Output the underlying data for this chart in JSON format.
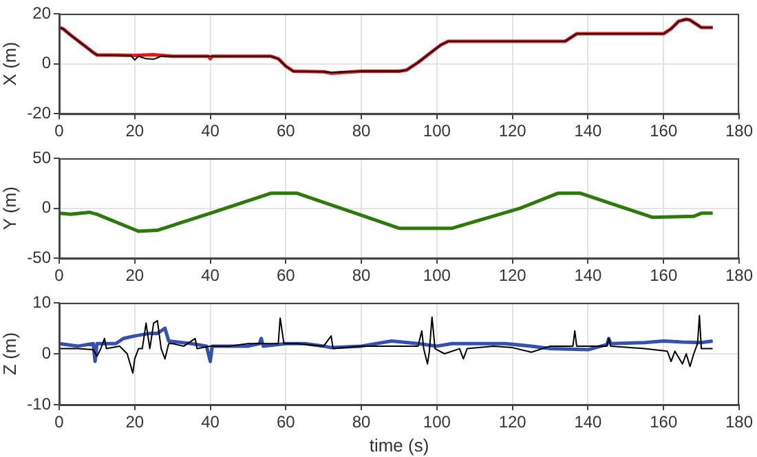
{
  "chart_data": [
    {
      "type": "line",
      "ylabel": "X (m)",
      "xlim": [
        0,
        180
      ],
      "xticks": [
        0,
        20,
        40,
        60,
        80,
        100,
        120,
        140,
        160,
        180
      ],
      "ylim": [
        -20,
        20
      ],
      "yticks": [
        -20,
        0,
        20
      ],
      "grid": true,
      "legend": false,
      "series": [
        {
          "color": "#000000",
          "x": [
            0,
            1,
            3,
            6,
            9,
            10,
            15,
            19,
            20,
            21,
            23,
            25,
            27,
            30,
            40,
            50,
            56,
            58,
            60,
            62,
            70,
            72,
            80,
            90,
            92,
            95,
            98,
            101,
            103,
            110,
            120,
            130,
            134,
            136,
            137,
            145,
            155,
            160,
            162,
            164,
            166,
            167,
            169,
            170,
            173
          ],
          "values": [
            14.5,
            14,
            11.5,
            8,
            4.5,
            3.5,
            3.3,
            3.2,
            1.5,
            3,
            2,
            1.8,
            3,
            3,
            3,
            3,
            3,
            2,
            -1,
            -3,
            -3.2,
            -3.5,
            -3,
            -3,
            -2.5,
            0.5,
            4,
            7.5,
            9,
            9,
            9,
            9,
            9,
            11,
            12,
            12,
            12,
            12,
            14,
            17,
            17.8,
            17.5,
            15.5,
            14.5,
            14.5
          ]
        },
        {
          "color": "#e8161a",
          "x": [
            0,
            1,
            3,
            6,
            9,
            10,
            15,
            20,
            25,
            30,
            39.5,
            40,
            40.5,
            50,
            56,
            58,
            60,
            62,
            70,
            72,
            80,
            90,
            92,
            95,
            98,
            101,
            103,
            110,
            120,
            130,
            134,
            136,
            137,
            145,
            155,
            160,
            162,
            164,
            166,
            167,
            169,
            170,
            173
          ],
          "values": [
            14.5,
            14,
            11.5,
            8,
            4.5,
            3.5,
            3.5,
            3.3,
            3.6,
            3,
            3,
            2,
            3,
            3,
            3,
            2,
            -1,
            -3,
            -3.2,
            -3.8,
            -3,
            -3,
            -2.5,
            0.5,
            4,
            7.5,
            9,
            9,
            9,
            9,
            9,
            11,
            12,
            12,
            12,
            12,
            14,
            17,
            17.8,
            17.5,
            15.5,
            14.5,
            14.5
          ]
        }
      ]
    },
    {
      "type": "line",
      "ylabel": "Y (m)",
      "xlim": [
        0,
        180
      ],
      "xticks": [
        0,
        20,
        40,
        60,
        80,
        100,
        120,
        140,
        160,
        180
      ],
      "ylim": [
        -50,
        50
      ],
      "yticks": [
        -50,
        0,
        50
      ],
      "grid": true,
      "legend": false,
      "series": [
        {
          "color": "#2d7a0c",
          "x": [
            0,
            3,
            8,
            10,
            21,
            26,
            40,
            56,
            63,
            90,
            104,
            122,
            132,
            138,
            157,
            168,
            170,
            173
          ],
          "values": [
            -5,
            -6,
            -4,
            -6,
            -23,
            -22,
            -5,
            15,
            15,
            -20,
            -20,
            0,
            15,
            15,
            -9,
            -8,
            -5,
            -5
          ]
        }
      ]
    },
    {
      "type": "line",
      "ylabel": "Z (m)",
      "xlabel": "time (s)",
      "xlim": [
        0,
        180
      ],
      "xticks": [
        0,
        20,
        40,
        60,
        80,
        100,
        120,
        140,
        160,
        180
      ],
      "ylim": [
        -10,
        10
      ],
      "yticks": [
        -10,
        0,
        10
      ],
      "grid": true,
      "legend": false,
      "series": [
        {
          "color": "#000000",
          "x": [
            0,
            5,
            9,
            10,
            11,
            12,
            12.5,
            16,
            18,
            19.5,
            20,
            21,
            22,
            23,
            24,
            25,
            26,
            27,
            28,
            29,
            30,
            33,
            36,
            36.5,
            40,
            45,
            50,
            55,
            58,
            58.5,
            59.5,
            63,
            70,
            72,
            72.5,
            80,
            90,
            95,
            96,
            96.5,
            97.5,
            98,
            98.7,
            99.5,
            102,
            106,
            107,
            108,
            115,
            120,
            125,
            130,
            136,
            136.5,
            137,
            145,
            145.5,
            146,
            155,
            161,
            162,
            163,
            165,
            166,
            167,
            168,
            169,
            169.5,
            170,
            173
          ],
          "values": [
            1,
            1,
            0.8,
            -0.5,
            1,
            3,
            1,
            1.5,
            0,
            -3.8,
            -1,
            1,
            1,
            6,
            1,
            6,
            6.5,
            1,
            -1,
            2,
            2,
            1.5,
            3,
            1,
            1.5,
            1.5,
            2,
            2,
            2,
            7,
            2,
            2,
            1.5,
            3.5,
            1,
            1.5,
            1.5,
            1.5,
            4.5,
            1,
            -2,
            0.5,
            7.2,
            1,
            0,
            1,
            -1,
            1,
            1.5,
            1.2,
            0.3,
            1.5,
            1.5,
            4.5,
            1.5,
            1.5,
            3,
            1.5,
            1,
            0.5,
            -1.5,
            0.5,
            -2,
            0,
            -2.5,
            0,
            2,
            7.5,
            1,
            1
          ]
        },
        {
          "color": "#3451b2",
          "x": [
            0,
            5,
            9,
            9.5,
            10,
            15,
            17,
            20,
            24,
            26,
            28,
            29,
            35,
            39,
            40,
            40.5,
            50,
            53,
            53.5,
            54,
            60,
            65,
            70,
            72,
            80,
            88,
            95,
            100,
            104,
            110,
            118,
            125,
            130,
            140,
            145,
            145.5,
            146,
            155,
            160,
            165,
            170,
            173
          ],
          "values": [
            2,
            1.5,
            2,
            -1.5,
            2,
            2,
            3,
            3.5,
            4,
            4,
            5,
            2.5,
            2,
            1.5,
            -1.5,
            1.5,
            1.5,
            2,
            3,
            1.5,
            2,
            2,
            1.5,
            1.2,
            1.5,
            2.5,
            2,
            1.5,
            2,
            2,
            2,
            1.5,
            1,
            0.8,
            1.8,
            3,
            2,
            2.2,
            2.5,
            2.3,
            2.2,
            2.5
          ]
        }
      ]
    }
  ]
}
